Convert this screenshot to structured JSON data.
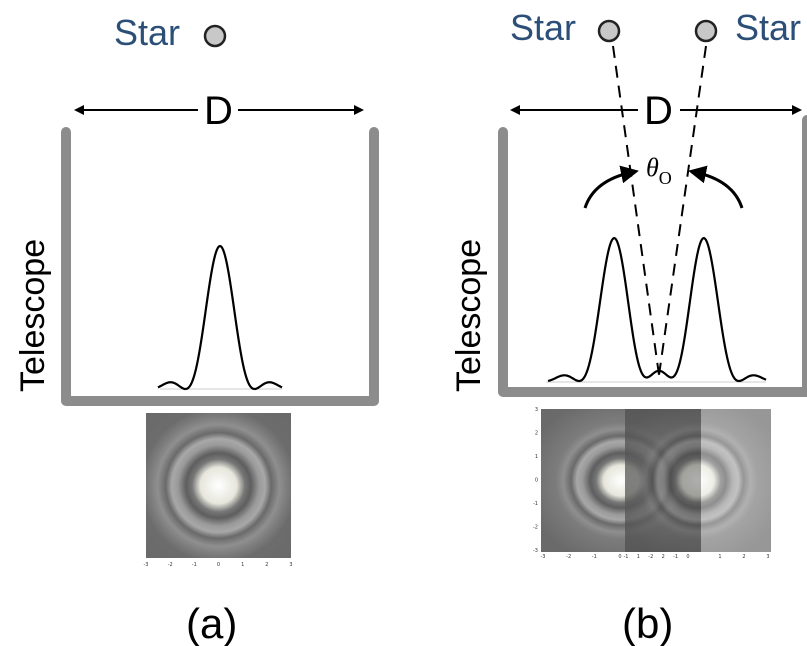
{
  "panel_a": {
    "star_label": "Star",
    "aperture_label": "D",
    "telescope_label": "Telescope",
    "panel_label": "(a)",
    "axis_ticks": [
      "-3",
      "-2",
      "-1",
      "0",
      "1",
      "2",
      "3"
    ]
  },
  "panel_b": {
    "star_left_label": "Star",
    "star_right_label": "Star",
    "aperture_label": "D",
    "telescope_label": "Telescope",
    "angle_symbol": "θ",
    "angle_subscript": "O",
    "panel_label": "(b)",
    "left_axis_ticks": [
      "-3",
      "-2",
      "-1",
      "0"
    ],
    "mid_axis_ticks": [
      "-1",
      "1",
      "-2",
      "2",
      "-1",
      "0"
    ],
    "right_axis_ticks": [
      "1",
      "2",
      "3"
    ],
    "y_ticks": [
      "3",
      "2",
      "1",
      "0",
      "-1",
      "-2",
      "-3"
    ]
  },
  "colors": {
    "star_text": "#2c4f78",
    "star_fill": "#c8c8c8",
    "telescope_wall": "#8c8c8c",
    "airy_center": "#f2f2ea",
    "airy_ring": "#8a8a8a"
  }
}
